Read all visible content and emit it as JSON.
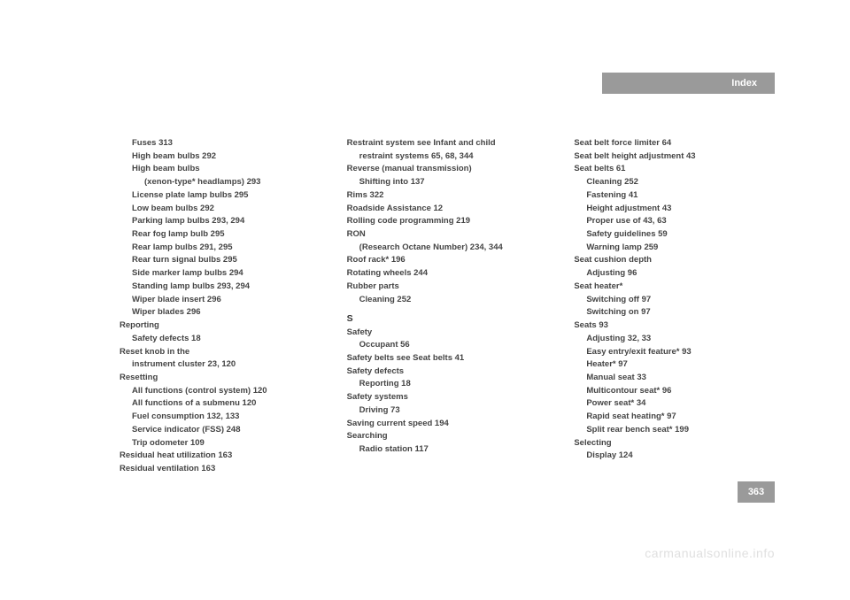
{
  "header": {
    "title": "Index"
  },
  "page_number": "363",
  "watermark": "carmanualsonline.info",
  "columns": [
    [
      {
        "indent": 1,
        "text": "Fuses   313"
      },
      {
        "indent": 1,
        "text": "High beam bulbs   292"
      },
      {
        "indent": 1,
        "text": "High beam bulbs "
      },
      {
        "indent": 2,
        "text": "(xenon-type* headlamps)   293"
      },
      {
        "indent": 1,
        "text": "License plate lamp bulbs   295"
      },
      {
        "indent": 1,
        "text": "Low beam bulbs   292"
      },
      {
        "indent": 1,
        "text": "Parking lamp bulbs   293, 294"
      },
      {
        "indent": 1,
        "text": "Rear fog lamp bulb   295"
      },
      {
        "indent": 1,
        "text": "Rear lamp bulbs   291, 295"
      },
      {
        "indent": 1,
        "text": "Rear turn signal bulbs   295"
      },
      {
        "indent": 1,
        "text": "Side marker lamp bulbs   294"
      },
      {
        "indent": 1,
        "text": "Standing lamp bulbs   293, 294"
      },
      {
        "indent": 1,
        "text": "Wiper blade insert   296"
      },
      {
        "indent": 1,
        "text": "Wiper blades   296"
      },
      {
        "indent": 0,
        "text": "Reporting"
      },
      {
        "indent": 1,
        "text": "Safety defects   18"
      },
      {
        "indent": 0,
        "text": "Reset knob in the "
      },
      {
        "indent": 1,
        "text": "instrument cluster   23, 120"
      },
      {
        "indent": 0,
        "text": "Resetting"
      },
      {
        "indent": 1,
        "text": "All functions (control system)   120"
      },
      {
        "indent": 1,
        "text": "All functions of a submenu   120"
      },
      {
        "indent": 1,
        "text": "Fuel consumption   132, 133"
      },
      {
        "indent": 1,
        "text": "Service indicator (FSS)   248"
      },
      {
        "indent": 1,
        "text": "Trip odometer   109"
      },
      {
        "indent": 0,
        "text": "Residual heat utilization   163"
      },
      {
        "indent": 0,
        "text": "Residual ventilation   163"
      }
    ],
    [
      {
        "indent": 0,
        "text": "Restraint system see Infant and child "
      },
      {
        "indent": 1,
        "text": "restraint systems   65, 68, 344"
      },
      {
        "indent": 0,
        "text": "Reverse (manual transmission)"
      },
      {
        "indent": 1,
        "text": "Shifting into   137"
      },
      {
        "indent": 0,
        "text": "Rims   322"
      },
      {
        "indent": 0,
        "text": "Roadside Assistance   12"
      },
      {
        "indent": 0,
        "text": "Rolling code programming   219"
      },
      {
        "indent": 0,
        "text": "RON "
      },
      {
        "indent": 1,
        "text": "(Research Octane Number)   234, 344"
      },
      {
        "indent": 0,
        "text": "Roof rack*   196"
      },
      {
        "indent": 0,
        "text": "Rotating wheels   244"
      },
      {
        "indent": 0,
        "text": "Rubber parts"
      },
      {
        "indent": 1,
        "text": "Cleaning   252"
      },
      {
        "indent": 0,
        "sh": true,
        "text": "S"
      },
      {
        "indent": 0,
        "text": "Safety"
      },
      {
        "indent": 1,
        "text": "Occupant   56"
      },
      {
        "indent": 0,
        "text": "Safety belts see Seat belts   41"
      },
      {
        "indent": 0,
        "text": "Safety defects"
      },
      {
        "indent": 1,
        "text": "Reporting   18"
      },
      {
        "indent": 0,
        "text": "Safety systems"
      },
      {
        "indent": 1,
        "text": "Driving   73"
      },
      {
        "indent": 0,
        "text": "Saving current speed   194"
      },
      {
        "indent": 0,
        "text": "Searching"
      },
      {
        "indent": 1,
        "text": "Radio station   117"
      }
    ],
    [
      {
        "indent": 0,
        "text": "Seat belt force limiter   64"
      },
      {
        "indent": 0,
        "text": "Seat belt height adjustment   43"
      },
      {
        "indent": 0,
        "text": "Seat belts   61"
      },
      {
        "indent": 1,
        "text": "Cleaning   252"
      },
      {
        "indent": 1,
        "text": "Fastening   41"
      },
      {
        "indent": 1,
        "text": "Height adjustment   43"
      },
      {
        "indent": 1,
        "text": "Proper use of   43, 63"
      },
      {
        "indent": 1,
        "text": "Safety guidelines   59"
      },
      {
        "indent": 1,
        "text": "Warning lamp   259"
      },
      {
        "indent": 0,
        "text": "Seat cushion depth"
      },
      {
        "indent": 1,
        "text": "Adjusting   96"
      },
      {
        "indent": 0,
        "text": "Seat heater*"
      },
      {
        "indent": 1,
        "text": "Switching off   97"
      },
      {
        "indent": 1,
        "text": "Switching on   97"
      },
      {
        "indent": 0,
        "text": "Seats   93"
      },
      {
        "indent": 1,
        "text": "Adjusting   32, 33"
      },
      {
        "indent": 1,
        "text": "Easy entry/exit feature*   93"
      },
      {
        "indent": 1,
        "text": "Heater*   97"
      },
      {
        "indent": 1,
        "text": "Manual seat   33"
      },
      {
        "indent": 1,
        "text": "Multicontour seat*   96"
      },
      {
        "indent": 1,
        "text": "Power seat*   34"
      },
      {
        "indent": 1,
        "text": "Rapid seat heating*   97"
      },
      {
        "indent": 1,
        "text": "Split rear bench seat*   199"
      },
      {
        "indent": 0,
        "text": "Selecting"
      },
      {
        "indent": 1,
        "text": "Display   124"
      }
    ]
  ]
}
